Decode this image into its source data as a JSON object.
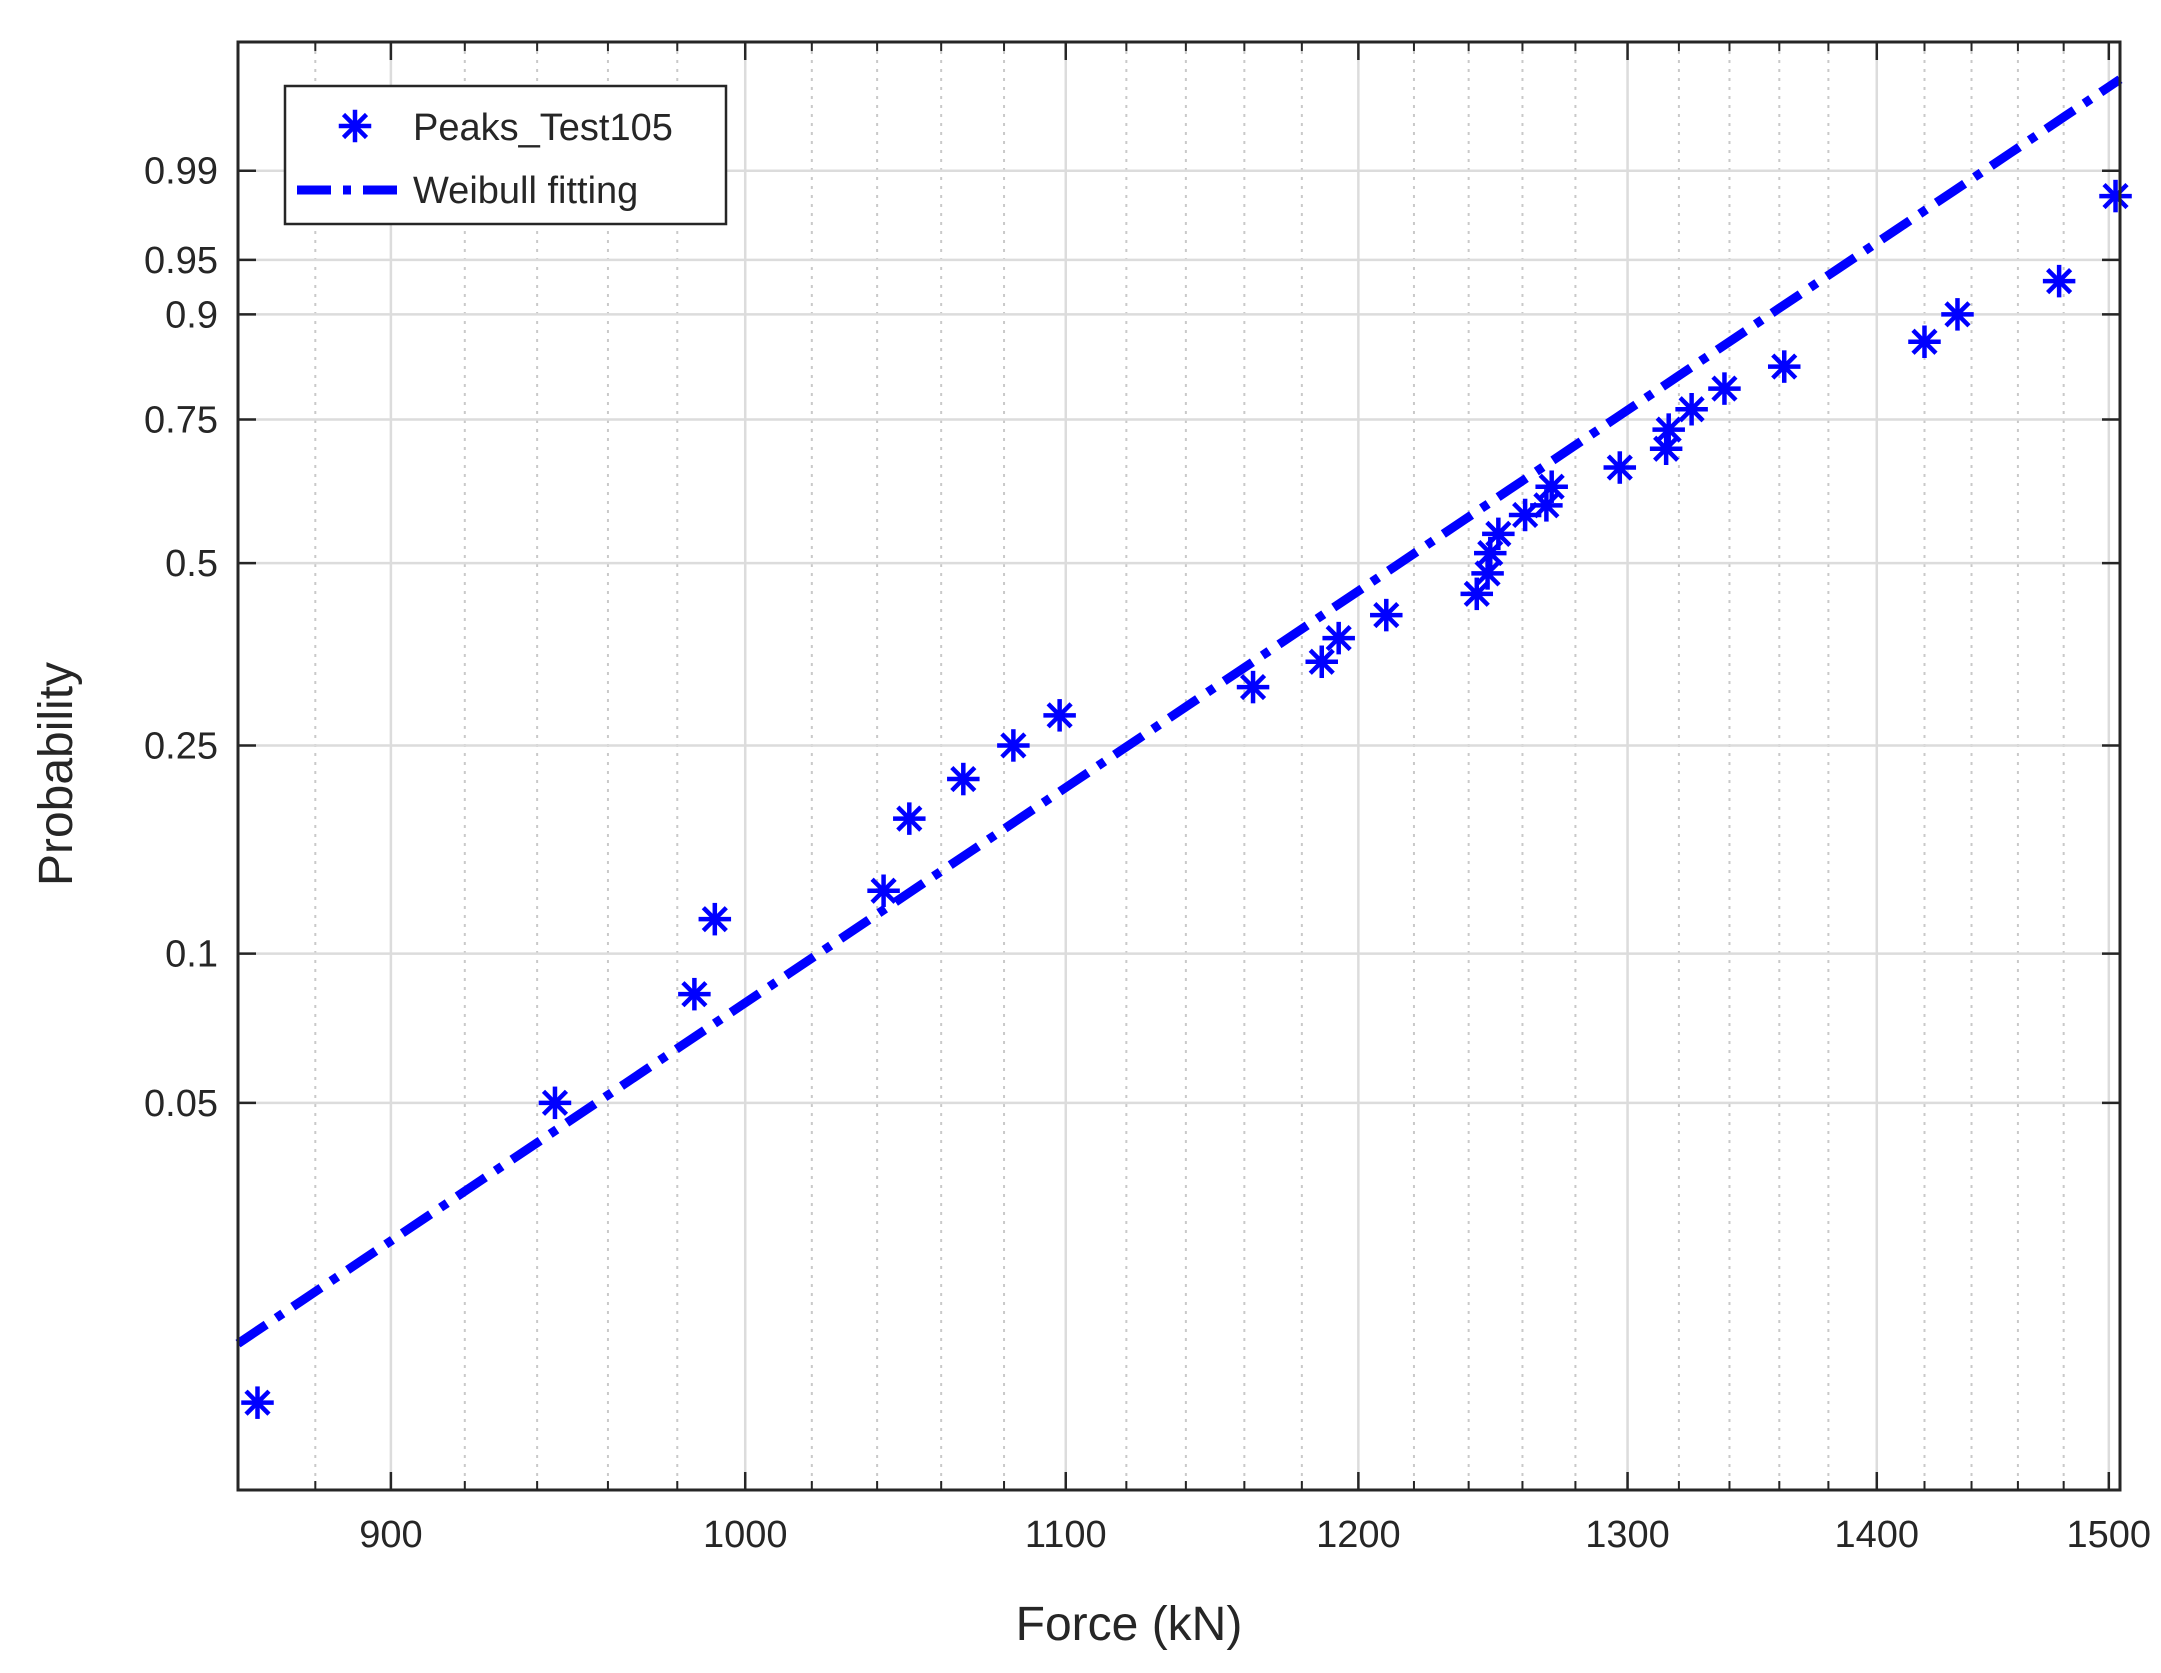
{
  "chart_data": {
    "type": "scatter",
    "title": "",
    "xlabel": "Force (kN)",
    "ylabel": "Probability",
    "x_scale": "log",
    "y_scale": "weibull",
    "xlim": [
      860,
      1505
    ],
    "x_ticks": [
      900,
      1000,
      1100,
      1200,
      1300,
      1400,
      1500
    ],
    "x_tick_labels": [
      "900",
      "1000",
      "1100",
      "1200",
      "1300",
      "1400",
      "1500"
    ],
    "x_minor_ticks": [
      880,
      920,
      940,
      960,
      980,
      1020,
      1040,
      1060,
      1080,
      1120,
      1140,
      1160,
      1180,
      1220,
      1240,
      1260,
      1280,
      1320,
      1340,
      1360,
      1380,
      1420,
      1440,
      1460,
      1480
    ],
    "y_ticks": [
      0.05,
      0.1,
      0.25,
      0.5,
      0.75,
      0.9,
      0.95,
      0.99
    ],
    "y_tick_labels": [
      "0.05",
      "0.1",
      "0.25",
      "0.5",
      "0.75",
      "0.9",
      "0.95",
      "0.99"
    ],
    "grid": true,
    "legend_position": "top-left",
    "series": [
      {
        "name": "Peaks_Test105",
        "marker": "asterisk",
        "color": "#0000ff",
        "points": [
          [
            865,
            0.012
          ],
          [
            945,
            0.05
          ],
          [
            985,
            0.083
          ],
          [
            991,
            0.117
          ],
          [
            1042,
            0.133
          ],
          [
            1050,
            0.183
          ],
          [
            1067,
            0.217
          ],
          [
            1083,
            0.25
          ],
          [
            1098,
            0.283
          ],
          [
            1163,
            0.317
          ],
          [
            1187,
            0.35
          ],
          [
            1193,
            0.383
          ],
          [
            1210,
            0.417
          ],
          [
            1243,
            0.45
          ],
          [
            1247,
            0.483
          ],
          [
            1248,
            0.517
          ],
          [
            1251,
            0.55
          ],
          [
            1261,
            0.583
          ],
          [
            1269,
            0.6
          ],
          [
            1271,
            0.633
          ],
          [
            1297,
            0.667
          ],
          [
            1315,
            0.7
          ],
          [
            1316,
            0.733
          ],
          [
            1325,
            0.767
          ],
          [
            1338,
            0.8
          ],
          [
            1362,
            0.833
          ],
          [
            1420,
            0.867
          ],
          [
            1434,
            0.9
          ],
          [
            1478,
            0.933
          ],
          [
            1503,
            0.983
          ]
        ]
      },
      {
        "name": "Weibull fitting",
        "line_style": "dash-dot",
        "color": "#0000ff",
        "x": [
          860,
          1505
        ],
        "weibull_scale": 1256.4,
        "weibull_shape": 10.9
      }
    ]
  }
}
